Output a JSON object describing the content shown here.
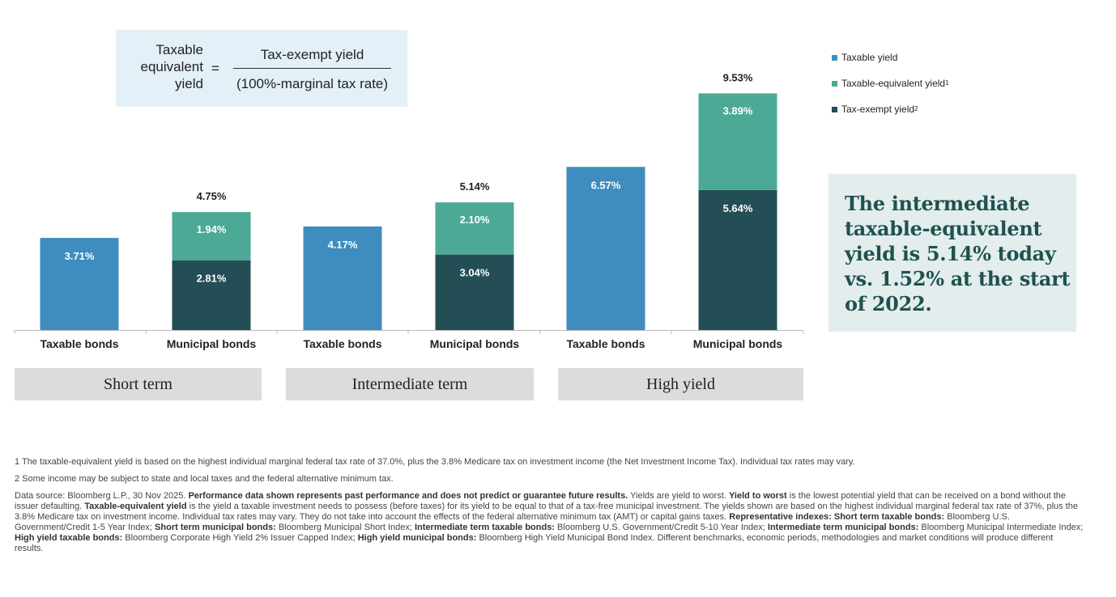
{
  "formula": {
    "lhs": [
      "Taxable",
      "equivalent",
      "yield"
    ],
    "equals": "=",
    "numerator": "Tax-exempt yield",
    "denominator": "(100%-marginal tax rate)"
  },
  "colors": {
    "taxable": "#3e8dbe",
    "taxable_equivalent": "#4ba996",
    "tax_exempt": "#244e55",
    "axis": "#bbbbbb",
    "group_box": "#dcdcdc",
    "callout_bg": "#e3eded",
    "callout_text": "#1e5250"
  },
  "chart_data": {
    "type": "bar",
    "stacked": true,
    "categories": [
      "Taxable bonds",
      "Municipal bonds",
      "Taxable bonds",
      "Municipal bonds",
      "Taxable bonds",
      "Municipal bonds"
    ],
    "groups": [
      "Short term",
      "Intermediate term",
      "High yield"
    ],
    "series": [
      {
        "name": "Taxable yield",
        "values": [
          3.71,
          null,
          4.17,
          null,
          6.57,
          null
        ]
      },
      {
        "name": "Tax-exempt yield",
        "values": [
          null,
          2.81,
          null,
          3.04,
          null,
          5.64
        ]
      },
      {
        "name": "Taxable-equivalent yield",
        "values": [
          null,
          1.94,
          null,
          2.1,
          null,
          3.89
        ]
      }
    ],
    "value_labels": [
      "3.71%",
      "2.81%",
      "1.94%",
      "4.17%",
      "3.04%",
      "2.10%",
      "6.57%",
      "5.64%",
      "3.89%"
    ],
    "totals": [
      null,
      4.75,
      null,
      5.14,
      null,
      9.53
    ],
    "total_labels": [
      "4.75%",
      "5.14%",
      "9.53%"
    ],
    "ylim": [
      0,
      10
    ],
    "grid": false,
    "legend_position": "top-right"
  },
  "legend": [
    {
      "label": "Taxable yield",
      "sup": "",
      "color": "#3e8dbe"
    },
    {
      "label": "Taxable-equivalent yield",
      "sup": "1",
      "color": "#4ba996"
    },
    {
      "label": "Tax-exempt yield",
      "sup": "2",
      "color": "#244e55"
    }
  ],
  "callout": "The intermediate taxable-equivalent yield is 5.14% today vs. 1.52% at the start of 2022.",
  "footnotes": {
    "fn1": "1 The taxable-equivalent yield is based on the highest individual marginal federal tax rate of 37.0%, plus the 3.8% Medicare tax on investment income (the Net Investment Income Tax). Individual tax rates may vary.",
    "fn2": "2 Some income may be subject to state and local taxes and the federal alternative minimum tax.",
    "source": [
      {
        "text": "Data source: Bloomberg L.P., 30 Nov 2025. ",
        "bold": false
      },
      {
        "text": "Performance data shown represents past performance and does not predict or guarantee future results.",
        "bold": true
      },
      {
        "text": " Yields are yield to worst. ",
        "bold": false
      },
      {
        "text": "Yield to worst",
        "bold": true
      },
      {
        "text": " is the lowest potential yield that can be received on a bond without the issuer defaulting. ",
        "bold": false
      },
      {
        "text": "Taxable-equivalent yield",
        "bold": true
      },
      {
        "text": " is the yield a taxable investment needs to possess (before taxes) for its yield to be equal to that of a tax-free municipal investment. The yields shown are based on the highest individual marginal federal tax rate of 37%, plus the 3.8% Medicare tax on investment income. Individual tax rates may vary. They do not take into account the effects of the federal alternative minimum tax (AMT) or capital gains taxes. ",
        "bold": false
      },
      {
        "text": "Representative indexes: Short term taxable bonds:",
        "bold": true
      },
      {
        "text": " Bloomberg U.S. Government/Credit 1-5 Year Index; ",
        "bold": false
      },
      {
        "text": "Short term municipal bonds:",
        "bold": true
      },
      {
        "text": " Bloomberg Municipal Short Index; ",
        "bold": false
      },
      {
        "text": "Intermediate term taxable bonds:",
        "bold": true
      },
      {
        "text": " Bloomberg U.S. Government/Credit 5-10 Year Index; ",
        "bold": false
      },
      {
        "text": "Intermediate term municipal bonds:",
        "bold": true
      },
      {
        "text": " Bloomberg Municipal Intermediate Index; ",
        "bold": false
      },
      {
        "text": "High yield taxable bonds:",
        "bold": true
      },
      {
        "text": " Bloomberg Corporate High Yield 2% Issuer Capped Index; ",
        "bold": false
      },
      {
        "text": "High yield municipal bonds:",
        "bold": true
      },
      {
        "text": " Bloomberg High Yield Municipal Bond Index. Different benchmarks, economic periods, methodologies and market conditions will produce different results.",
        "bold": false
      }
    ]
  }
}
